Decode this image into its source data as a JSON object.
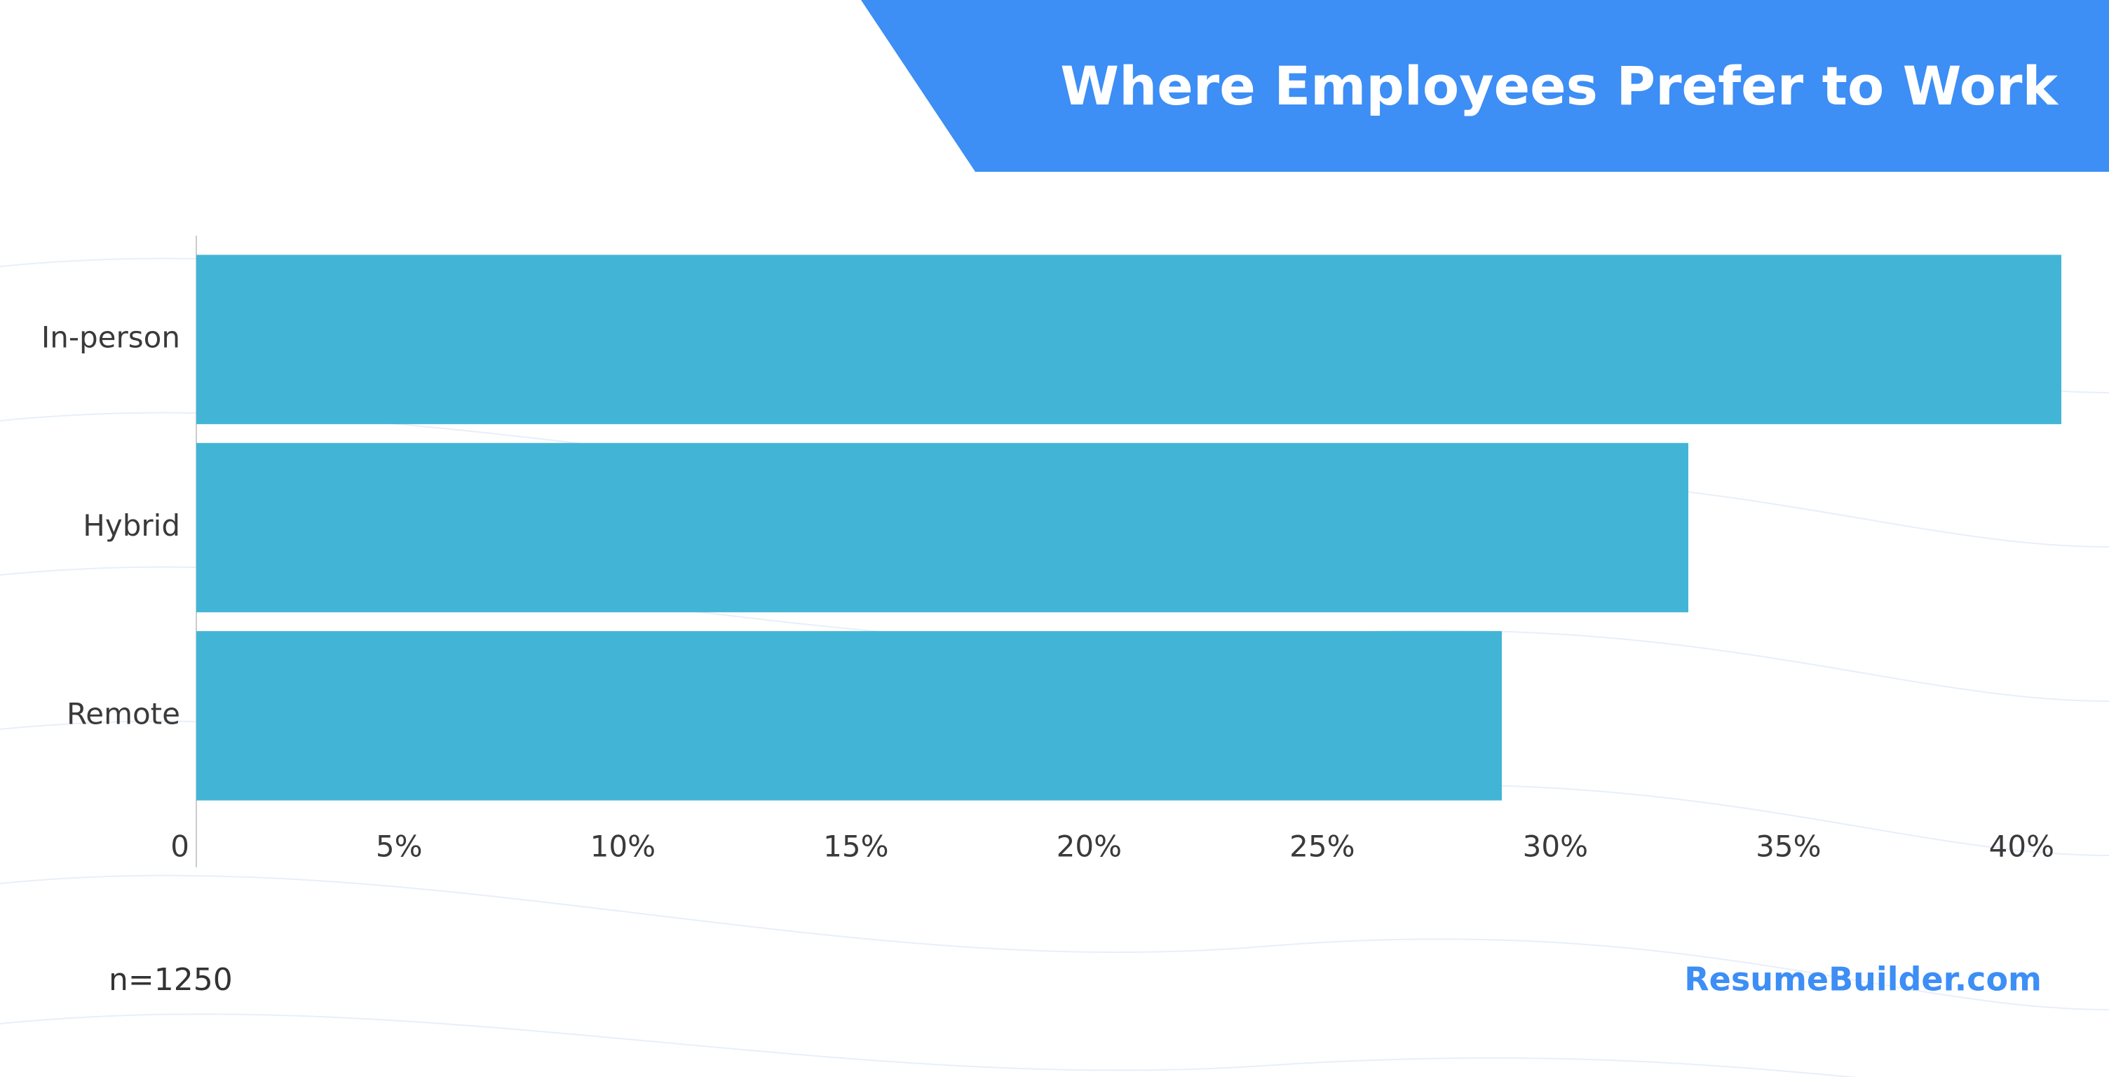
{
  "chart_data": {
    "type": "bar",
    "orientation": "horizontal",
    "title": "Where Employees Prefer to Work",
    "categories": [
      "In-person",
      "Hybrid",
      "Remote"
    ],
    "values": [
      40,
      32,
      28
    ],
    "color": "#42b5d6",
    "xlim": [
      0,
      40
    ],
    "xticks": [
      0,
      {
        "value": 5,
        "label": "5%"
      },
      {
        "value": 10,
        "label": "10%"
      },
      {
        "value": 15,
        "label": "15%"
      },
      {
        "value": 20,
        "label": "20%"
      },
      {
        "value": 25,
        "label": "25%"
      },
      {
        "value": 30,
        "label": "30%"
      },
      {
        "value": 35,
        "label": "35%"
      },
      {
        "value": 40,
        "label": "40%"
      }
    ],
    "note": "n=1250",
    "source": "ResumeBuilder.com"
  }
}
